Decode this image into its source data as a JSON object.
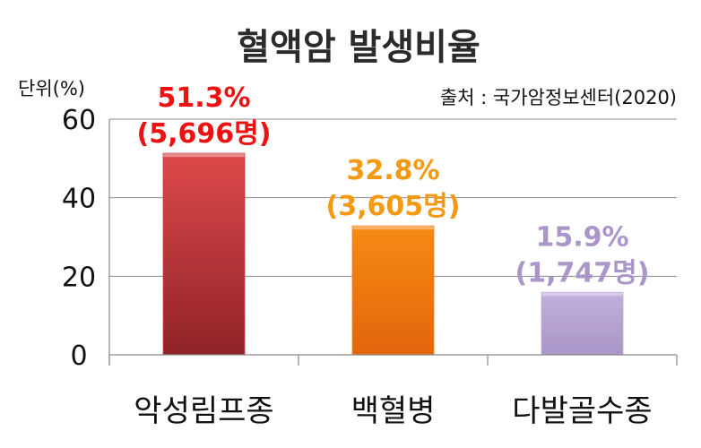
{
  "chart_data": {
    "type": "bar",
    "title": "혈액암 발생비율",
    "unit_label": "단위(%)",
    "source": "출처 : 국가암정보센터(2020)",
    "ylim": [
      0,
      60
    ],
    "yticks": [
      "0",
      "20",
      "40",
      "60"
    ],
    "grid": true,
    "categories": [
      "악성림프종",
      "백혈병",
      "다발골수종"
    ],
    "values": [
      51.3,
      32.8,
      15.9
    ],
    "value_labels": [
      "51.3%",
      "32.8%",
      "15.9%"
    ],
    "count_labels": [
      "(5,696명)",
      "(3,605명)",
      "(1,747명)"
    ],
    "colors": [
      "#c9383a",
      "#f07c12",
      "#b9a7d3"
    ],
    "label_colors": [
      "#ee1111",
      "#f39a12",
      "#aa96c8"
    ]
  }
}
